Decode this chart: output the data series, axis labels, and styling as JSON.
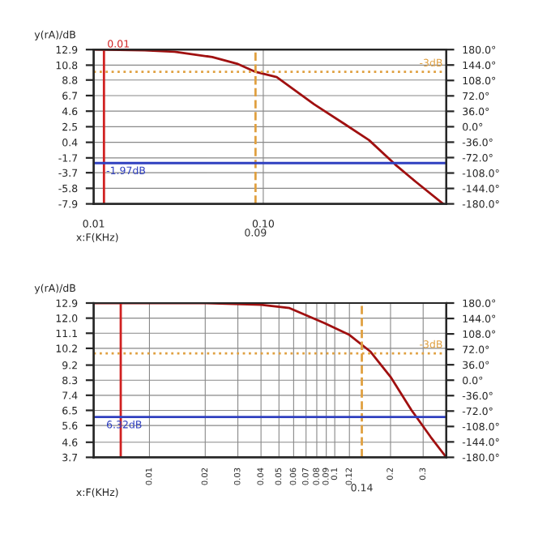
{
  "chart_data": [
    {
      "type": "line",
      "ylabel": "y(rA)/dB",
      "xlabel": "x:F(KHz)",
      "log": "x",
      "grid": true,
      "marker": "none",
      "line_style": "solid",
      "x": [
        0.01,
        0.02,
        0.03,
        0.05,
        0.07,
        0.09,
        0.12,
        0.2,
        0.3,
        0.42,
        0.6,
        0.8,
        1.15
      ],
      "series": [
        {
          "color": "#a01010",
          "values": [
            12.9,
            12.8,
            12.6,
            11.9,
            11,
            9.9,
            9.2,
            5.5,
            2.9,
            0.7,
            -2.6,
            -5,
            -7.9
          ]
        }
      ],
      "xlim": [
        0.01,
        1.2
      ],
      "xticks": [
        0.01,
        {
          "value": 0.1,
          "label": "0.10"
        }
      ],
      "ylim": [
        -7.9,
        12.9
      ],
      "yticks": [
        12.9,
        10.8,
        8.8,
        6.7,
        4.6,
        2.5,
        0.4,
        -1.7,
        -3.7,
        -5.8,
        -7.9
      ],
      "y2lim": [
        -180,
        180
      ],
      "y2ticks": [
        {
          "value": 180,
          "label": "180.0°"
        },
        {
          "value": 144,
          "label": "144.0°"
        },
        {
          "value": 108,
          "label": "108.0°"
        },
        {
          "value": 72,
          "label": "72.0°"
        },
        {
          "value": 36,
          "label": "36.0°"
        },
        {
          "value": 0,
          "label": "0.0°"
        },
        {
          "value": -36,
          "label": "-36.0°"
        },
        {
          "value": -72,
          "label": "-72.0°"
        },
        {
          "value": -108,
          "label": "-108.0°"
        },
        {
          "value": -144,
          "label": "-144.0°"
        },
        {
          "value": -180,
          "label": "-180.0°"
        }
      ],
      "ref_lines": [
        {
          "axis": "x",
          "value": 0.0115,
          "label": "0.01",
          "color": "#d02020",
          "line_style": "solid"
        },
        {
          "axis": "x",
          "value": 0.09,
          "label": "0.09",
          "color": "#e0a040",
          "line_style": "dashed"
        },
        {
          "axis": "y",
          "value": 9.9,
          "label": "-3dB",
          "color": "#e0a040",
          "line_style": "dotted"
        },
        {
          "axis": "y",
          "value": -2.4,
          "label": "-1.97dB",
          "color": "#3040c0",
          "line_style": "solid"
        }
      ]
    },
    {
      "type": "line",
      "ylabel": "y(rA)/dB",
      "xlabel": "x:F(KHz)",
      "log": "x",
      "grid": true,
      "marker": "none",
      "line_style": "solid",
      "x": [
        0.005,
        0.01,
        0.02,
        0.04,
        0.057,
        0.088,
        0.12,
        0.156,
        0.2,
        0.26,
        0.33,
        0.4
      ],
      "series": [
        {
          "color": "#a01010",
          "values": [
            12.9,
            12.9,
            12.9,
            12.8,
            12.6,
            11.7,
            11,
            10,
            8.5,
            6.5,
            4.9,
            3.7
          ]
        }
      ],
      "xlim": [
        0.005,
        0.4
      ],
      "xticks": [
        0.01,
        0.02,
        0.03,
        0.04,
        0.05,
        0.06,
        0.07,
        0.08,
        0.09,
        0.1,
        0.12,
        0.2,
        0.3
      ],
      "ylim": [
        3.7,
        12.9
      ],
      "yticks": [
        12.9,
        {
          "value": 12,
          "label": "12.0"
        },
        11.1,
        10.2,
        9.2,
        8.3,
        7.4,
        6.5,
        5.6,
        4.6,
        3.7
      ],
      "y2lim": [
        -180,
        180
      ],
      "y2ticks": [
        {
          "value": 180,
          "label": "180.0°"
        },
        {
          "value": 144,
          "label": "144.0°"
        },
        {
          "value": 108,
          "label": "108.0°"
        },
        {
          "value": 72,
          "label": "72.0°"
        },
        {
          "value": 36,
          "label": "36.0°"
        },
        {
          "value": 0,
          "label": "0.0°"
        },
        {
          "value": -36,
          "label": "-36.0°"
        },
        {
          "value": -72,
          "label": "-72.0°"
        },
        {
          "value": -108,
          "label": "-108.0°"
        },
        {
          "value": -144,
          "label": "-144.0°"
        },
        {
          "value": -180,
          "label": "-180.0°"
        }
      ],
      "ref_lines": [
        {
          "axis": "x",
          "value": 0.007,
          "color": "#d02020",
          "line_style": "solid"
        },
        {
          "axis": "x",
          "value": 0.14,
          "label": "0.14",
          "color": "#e0a040",
          "line_style": "dashed"
        },
        {
          "axis": "y",
          "value": 9.9,
          "label": "-3dB",
          "color": "#e0a040",
          "line_style": "dotted"
        },
        {
          "axis": "y",
          "value": 6.1,
          "label": "6.32dB",
          "color": "#3040c0",
          "line_style": "solid"
        }
      ]
    }
  ]
}
